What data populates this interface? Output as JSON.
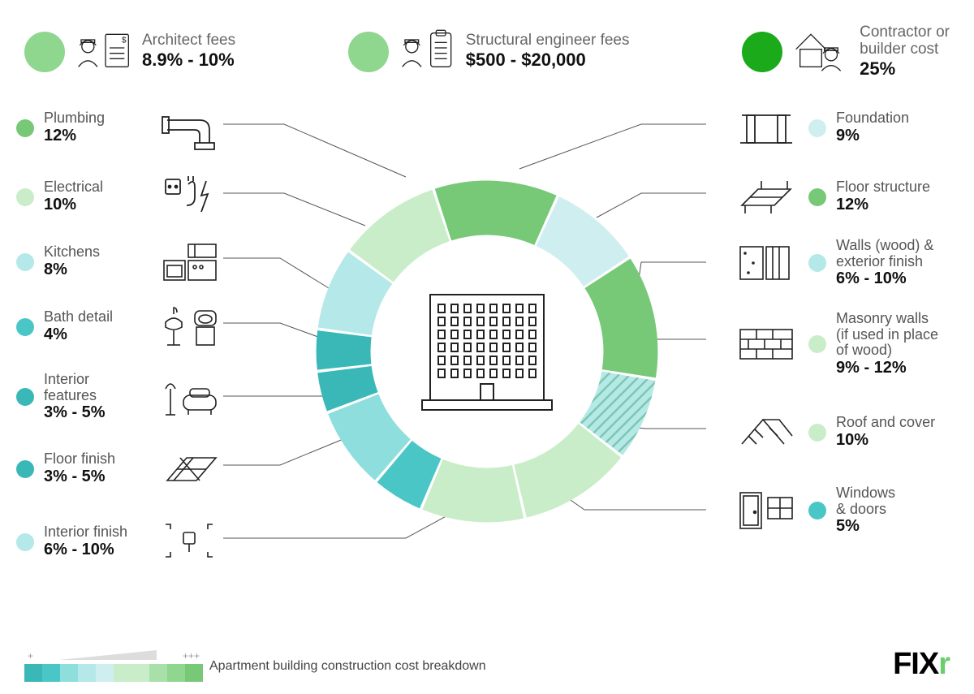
{
  "top": [
    {
      "label": "Architect fees",
      "value": "8.9% - 10%",
      "dot_color": "#8fd68f"
    },
    {
      "label": "Structural engineer fees",
      "value": "$500 - $20,000",
      "dot_color": "#8fd68f"
    },
    {
      "label": "Contractor or\nbuilder cost",
      "value": "25%",
      "dot_color": "#1aaa1a"
    }
  ],
  "left_items": [
    {
      "label": "Plumbing",
      "value": "12%",
      "dot_color": "#77c877"
    },
    {
      "label": "Electrical",
      "value": "10%",
      "dot_color": "#c9edc9"
    },
    {
      "label": "Kitchens",
      "value": "8%",
      "dot_color": "#b5e8e8"
    },
    {
      "label": "Bath detail",
      "value": "4%",
      "dot_color": "#4bc6c6"
    },
    {
      "label": "Interior\nfeatures",
      "value": "3% - 5%",
      "dot_color": "#3ab8b8"
    },
    {
      "label": "Floor finish",
      "value": "3% - 5%",
      "dot_color": "#3ab8b8"
    },
    {
      "label": "Interior finish",
      "value": "6% - 10%",
      "dot_color": "#b5e8e8"
    }
  ],
  "right_items": [
    {
      "label": "Foundation",
      "value": "9%",
      "dot_color": "#cfeef0"
    },
    {
      "label": "Floor structure",
      "value": "12%",
      "dot_color": "#77c877"
    },
    {
      "label": "Walls (wood) &\nexterior finish",
      "value": "6% - 10%",
      "dot_color": "#b5e8e8"
    },
    {
      "label": "Masonry walls\n(if used in place\nof wood)",
      "value": "9% - 12%",
      "dot_color": "#c9edc9"
    },
    {
      "label": "Roof and cover",
      "value": "10%",
      "dot_color": "#c9edc9"
    },
    {
      "label": "Windows\n& doors",
      "value": "5%",
      "dot_color": "#4bc6c6"
    }
  ],
  "donut": {
    "segments": [
      {
        "color": "#cfeef0",
        "size": 9
      },
      {
        "color": "#77c877",
        "size": 12
      },
      {
        "color": "#b5e8e8",
        "size": 8,
        "hatched": true
      },
      {
        "color": "#c9edc9",
        "size": 11
      },
      {
        "color": "#c9edc9",
        "size": 10
      },
      {
        "color": "#4bc6c6",
        "size": 5
      },
      {
        "color": "#8fdede",
        "size": 8
      },
      {
        "color": "#3ab8b8",
        "size": 4
      },
      {
        "color": "#3ab8b8",
        "size": 4
      },
      {
        "color": "#b5e8e8",
        "size": 8
      },
      {
        "color": "#c9edc9",
        "size": 10
      },
      {
        "color": "#77c877",
        "size": 12
      }
    ],
    "gap_deg": 1,
    "inner_r": 150,
    "outer_r": 220
  },
  "scale_colors": [
    "#3ab8b8",
    "#4bc6c6",
    "#8fdede",
    "#b5e8e8",
    "#cfeef0",
    "#c9edc9",
    "#c9edc9",
    "#a9e0a9",
    "#8fd68f",
    "#77c877"
  ],
  "caption": "Apartment building construction cost breakdown",
  "logo": "FIX"
}
